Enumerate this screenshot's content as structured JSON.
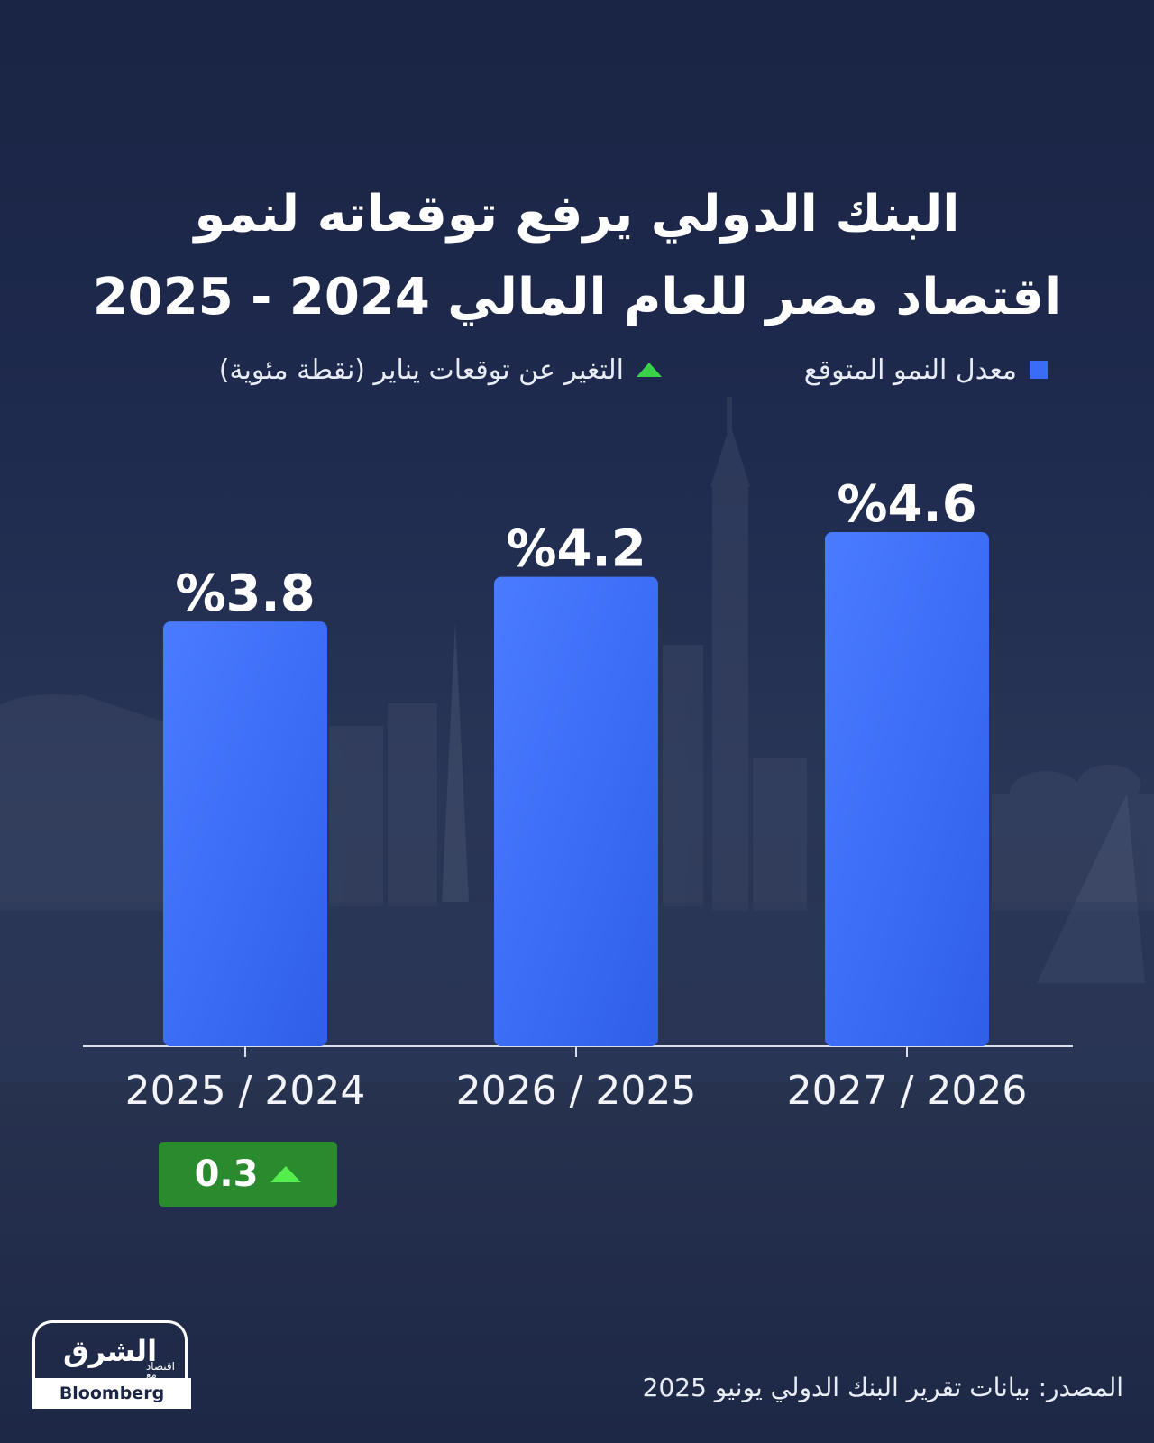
{
  "header": {
    "title_line1": "البنك الدولي يرفع توقعاته لنمو",
    "title_line2": "اقتصاد مصر للعام المالي 2024 - 2025"
  },
  "legend": {
    "growth_label": "معدل النمو المتوقع",
    "change_label": "التغير عن توقعات يناير (نقطة مئوية)"
  },
  "chart_data": {
    "type": "bar",
    "categories": [
      "2025 / 2024",
      "2026 / 2025",
      "2027 / 2026"
    ],
    "values": [
      3.8,
      4.2,
      4.6
    ],
    "value_labels": [
      "%3.8",
      "%4.2",
      "%4.6"
    ],
    "changes": [
      0.3,
      null,
      null
    ],
    "change_labels": [
      "0.3"
    ],
    "ylim": [
      0,
      4.6
    ],
    "grid": false,
    "legend_placement": "top",
    "colors": {
      "bar": "#3b6cf5",
      "change_box": "#2a8a2e",
      "change_arrow": "#54ee4d"
    }
  },
  "footer": {
    "source": "المصدر: بيانات تقرير البنك الدولي يونيو 2025",
    "logo_main": "الشرق",
    "logo_sub": "اقتصاد",
    "logo_with": "مع",
    "logo_partner": "Bloomberg"
  }
}
